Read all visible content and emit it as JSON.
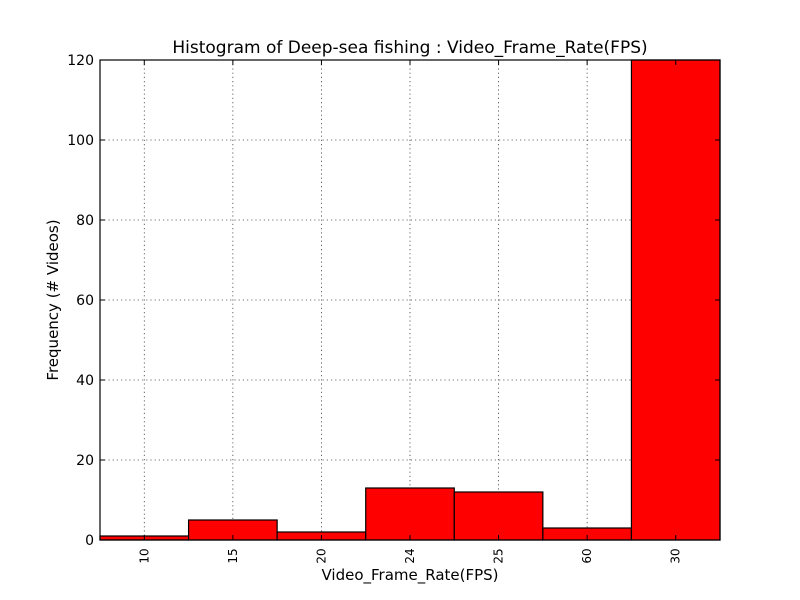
{
  "chart_data": {
    "type": "bar",
    "title": "Histogram of Deep-sea fishing : Video_Frame_Rate(FPS)",
    "xlabel": "Video_Frame_Rate(FPS)",
    "ylabel": "Frequency (# Videos)",
    "categories": [
      "10",
      "15",
      "20",
      "24",
      "25",
      "60",
      "30"
    ],
    "values": [
      1,
      5,
      2,
      13,
      12,
      3,
      120
    ],
    "ylim": [
      0,
      120
    ],
    "yticks": [
      0,
      20,
      40,
      60,
      80,
      100,
      120
    ],
    "bar_color": "#ff0000",
    "edge_color": "#000000",
    "grid": true,
    "legend": "none"
  }
}
